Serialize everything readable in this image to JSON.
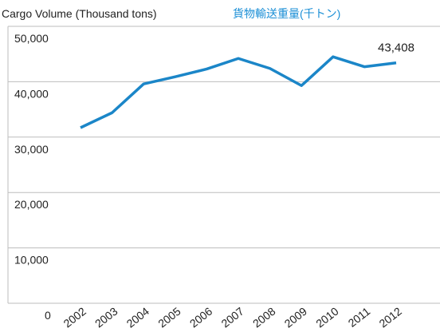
{
  "chart_data": {
    "type": "line",
    "title": "Cargo Volume (Thousand tons)",
    "subtitle": "貨物輸送重量(千トン)",
    "categories": [
      "2002",
      "2003",
      "2004",
      "2005",
      "2006",
      "2007",
      "2008",
      "2009",
      "2010",
      "2011",
      "2012"
    ],
    "series": [
      {
        "name": "Cargo Volume",
        "color": "#1b86c8",
        "values": [
          31700,
          34400,
          39600,
          40900,
          42300,
          44200,
          42400,
          39300,
          44500,
          42700,
          43408
        ],
        "value_labels": [
          null,
          null,
          null,
          null,
          null,
          null,
          null,
          null,
          null,
          null,
          "43,408"
        ]
      }
    ],
    "ylim": [
      0,
      50000
    ],
    "yticks": [
      0,
      {
        "value": 10000,
        "label": "10,000"
      },
      {
        "value": 20000,
        "label": "20,000"
      },
      {
        "value": 30000,
        "label": "30,000"
      },
      {
        "value": 40000,
        "label": "40,000"
      },
      {
        "value": 50000,
        "label": "50,000"
      }
    ],
    "grid": true
  }
}
